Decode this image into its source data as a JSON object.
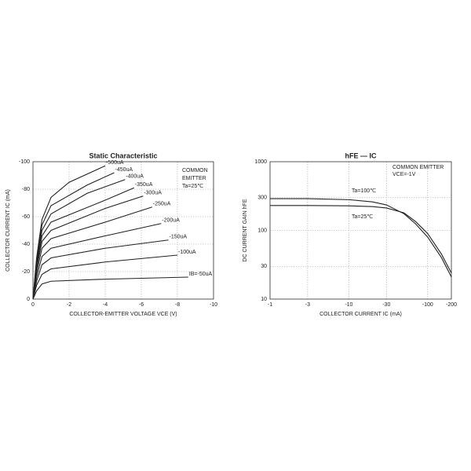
{
  "chart_data": [
    {
      "type": "line",
      "title": "Static Characteristic",
      "x_label": "COLLECTOR-EMITTER VOLTAGE VCE (V)",
      "y_label": "COLLECTOR CURRENT IC (mA)",
      "annotations": [
        "COMMON",
        "EMITTER",
        "Ta=25℃"
      ],
      "xlim": [
        0,
        -10
      ],
      "xticks": [
        0,
        -2,
        -4,
        -6,
        -8,
        -10
      ],
      "ylim": [
        0,
        -100
      ],
      "yticks": [
        0,
        -20,
        -40,
        -60,
        -80,
        -100
      ],
      "grid": true,
      "series": [
        {
          "name": "IB=-50uA",
          "color": "#222222",
          "x": [
            0,
            -0.2,
            -0.5,
            -1,
            -4,
            -8.6
          ],
          "values": [
            0,
            -6,
            -11,
            -13,
            -14.5,
            -16
          ]
        },
        {
          "name": "-100uA",
          "color": "#222222",
          "x": [
            0,
            -0.2,
            -0.5,
            -1,
            -4,
            -8
          ],
          "values": [
            0,
            -10,
            -18,
            -22,
            -27,
            -32
          ]
        },
        {
          "name": "-150uA",
          "color": "#222222",
          "x": [
            0,
            -0.2,
            -0.5,
            -1,
            -4,
            -7.5
          ],
          "values": [
            0,
            -13,
            -25,
            -30,
            -37,
            -43
          ]
        },
        {
          "name": "-200uA",
          "color": "#222222",
          "x": [
            0,
            -0.2,
            -0.5,
            -1,
            -4,
            -7.1
          ],
          "values": [
            0,
            -16,
            -31,
            -37,
            -46,
            -55
          ]
        },
        {
          "name": "-250uA",
          "color": "#222222",
          "x": [
            0,
            -0.2,
            -0.5,
            -1,
            -4,
            -6.6
          ],
          "values": [
            0,
            -19,
            -37,
            -44,
            -56,
            -67
          ]
        },
        {
          "name": "-300uA",
          "color": "#222222",
          "x": [
            0,
            -0.2,
            -0.5,
            -1,
            -4,
            -6.1
          ],
          "values": [
            0,
            -22,
            -42,
            -50,
            -66,
            -75
          ]
        },
        {
          "name": "-350uA",
          "color": "#222222",
          "x": [
            0,
            -0.2,
            -0.5,
            -1,
            -4,
            -5.6
          ],
          "values": [
            0,
            -24,
            -46,
            -56,
            -72,
            -81
          ]
        },
        {
          "name": "-400uA",
          "color": "#222222",
          "x": [
            0,
            -0.2,
            -0.5,
            -1,
            -3,
            -5.1
          ],
          "values": [
            0,
            -26,
            -50,
            -62,
            -77,
            -87
          ]
        },
        {
          "name": "-450uA",
          "color": "#222222",
          "x": [
            0,
            -0.2,
            -0.5,
            -1,
            -3,
            -4.5
          ],
          "values": [
            0,
            -28,
            -54,
            -68,
            -83,
            -92
          ]
        },
        {
          "name": "-500uA",
          "color": "#222222",
          "x": [
            0,
            -0.2,
            -0.5,
            -1,
            -2,
            -4
          ],
          "values": [
            0,
            -30,
            -58,
            -74,
            -85,
            -97
          ]
        }
      ]
    },
    {
      "type": "line",
      "title": "hFE — IC",
      "x_label": "COLLECTOR CURRENT IC (mA)",
      "y_label": "DC CURRENT GAIN hFE",
      "annotations": [
        "COMMON EMITTER",
        "VCE=-1V"
      ],
      "log_x": true,
      "log_y": true,
      "xlim": [
        -1,
        -200
      ],
      "xticks": [
        -1,
        -3,
        -10,
        -30,
        -100,
        -200
      ],
      "ylim": [
        10,
        1000
      ],
      "yticks": [
        10,
        30,
        100,
        300,
        1000
      ],
      "grid": true,
      "series": [
        {
          "name": "Ta=100℃",
          "color": "#222222",
          "x": [
            -1,
            -3,
            -10,
            -20,
            -30,
            -50,
            -70,
            -100,
            -150,
            -200
          ],
          "values": [
            290,
            290,
            280,
            260,
            235,
            175,
            125,
            80,
            40,
            21
          ]
        },
        {
          "name": "Ta=25℃",
          "color": "#222222",
          "x": [
            -1,
            -3,
            -10,
            -20,
            -30,
            -50,
            -70,
            -100,
            -150,
            -200
          ],
          "values": [
            230,
            230,
            228,
            222,
            212,
            180,
            135,
            90,
            45,
            24
          ]
        }
      ]
    }
  ]
}
